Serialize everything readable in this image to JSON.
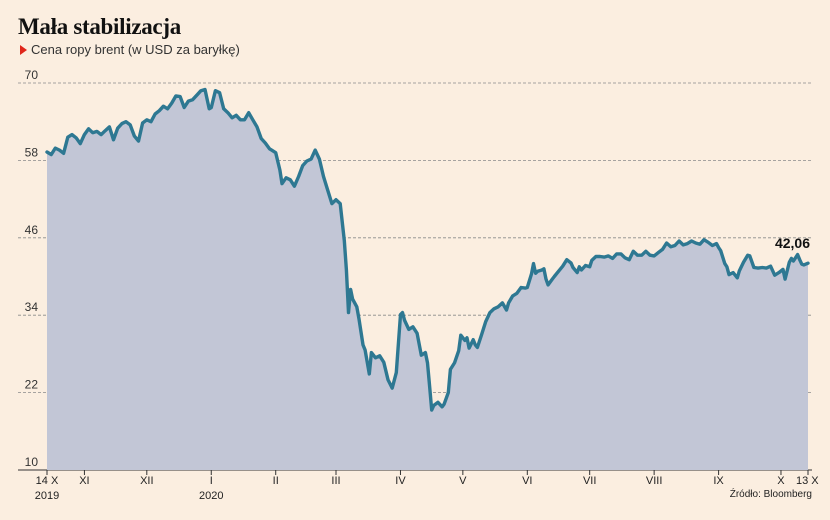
{
  "header": {
    "title": "Mała stabilizacja",
    "subtitle": "Cena ropy brent (w USD za baryłkę)"
  },
  "source": "Źródło: Bloomberg",
  "colors": {
    "background": "#fbeee0",
    "line": "#2e7892",
    "area": "#c2c6d6",
    "marker": "#e0261b",
    "grid": "#8a8a8a"
  },
  "chart_data": {
    "type": "area",
    "ylim": [
      10,
      70
    ],
    "yticks": [
      10,
      22,
      34,
      46,
      58,
      70
    ],
    "grid": true,
    "xlim": [
      0,
      366
    ],
    "xticks": [
      {
        "x": 0,
        "label": "14 X",
        "sub": "2019"
      },
      {
        "x": 18,
        "label": "XI"
      },
      {
        "x": 48,
        "label": "XII"
      },
      {
        "x": 79,
        "label": "I",
        "sub": "2020"
      },
      {
        "x": 110,
        "label": "II"
      },
      {
        "x": 139,
        "label": "III"
      },
      {
        "x": 170,
        "label": "IV"
      },
      {
        "x": 200,
        "label": "V"
      },
      {
        "x": 231,
        "label": "VI"
      },
      {
        "x": 261,
        "label": "VII"
      },
      {
        "x": 292,
        "label": "VIII"
      },
      {
        "x": 323,
        "label": "IX"
      },
      {
        "x": 353,
        "label": "X"
      },
      {
        "x": 366,
        "label": "13 X"
      }
    ],
    "annotation": {
      "text": "42,06",
      "x": 366,
      "y": 42.06
    },
    "series": [
      {
        "points": [
          [
            0,
            59.3
          ],
          [
            2,
            58.9
          ],
          [
            4,
            59.9
          ],
          [
            6,
            59.6
          ],
          [
            8,
            59.1
          ],
          [
            10,
            61.6
          ],
          [
            12,
            62.0
          ],
          [
            14,
            61.5
          ],
          [
            16,
            60.6
          ],
          [
            18,
            62.0
          ],
          [
            20,
            62.9
          ],
          [
            22,
            62.3
          ],
          [
            24,
            62.5
          ],
          [
            26,
            62.0
          ],
          [
            28,
            62.6
          ],
          [
            30,
            63.2
          ],
          [
            32,
            61.2
          ],
          [
            34,
            63.0
          ],
          [
            36,
            63.7
          ],
          [
            38,
            64.0
          ],
          [
            40,
            63.5
          ],
          [
            42,
            61.8
          ],
          [
            44,
            61.0
          ],
          [
            46,
            63.8
          ],
          [
            48,
            64.3
          ],
          [
            50,
            64.0
          ],
          [
            52,
            65.2
          ],
          [
            54,
            65.7
          ],
          [
            56,
            66.4
          ],
          [
            58,
            66.0
          ],
          [
            60,
            66.9
          ],
          [
            62,
            68.0
          ],
          [
            64,
            67.9
          ],
          [
            66,
            66.2
          ],
          [
            68,
            67.2
          ],
          [
            70,
            67.4
          ],
          [
            72,
            68.1
          ],
          [
            74,
            68.8
          ],
          [
            76,
            69.0
          ],
          [
            78,
            66.0
          ],
          [
            79,
            66.2
          ],
          [
            81,
            68.8
          ],
          [
            83,
            68.5
          ],
          [
            85,
            66.0
          ],
          [
            87,
            65.4
          ],
          [
            89,
            64.6
          ],
          [
            91,
            65.0
          ],
          [
            93,
            64.3
          ],
          [
            95,
            64.3
          ],
          [
            97,
            65.4
          ],
          [
            99,
            64.3
          ],
          [
            101,
            63.2
          ],
          [
            103,
            61.4
          ],
          [
            105,
            60.7
          ],
          [
            107,
            59.8
          ],
          [
            108,
            59.6
          ],
          [
            110,
            59.2
          ],
          [
            112,
            56.5
          ],
          [
            113,
            54.4
          ],
          [
            115,
            55.3
          ],
          [
            117,
            55.0
          ],
          [
            119,
            54.0
          ],
          [
            121,
            55.5
          ],
          [
            123,
            57.2
          ],
          [
            125,
            57.9
          ],
          [
            127,
            58.2
          ],
          [
            129,
            59.6
          ],
          [
            131,
            58.2
          ],
          [
            133,
            55.5
          ],
          [
            135,
            53.4
          ],
          [
            137,
            51.3
          ],
          [
            139,
            51.9
          ],
          [
            141,
            51.3
          ],
          [
            143,
            45.6
          ],
          [
            144,
            41.0
          ],
          [
            145,
            34.4
          ],
          [
            146,
            38.0
          ],
          [
            147,
            36.5
          ],
          [
            149,
            35.3
          ],
          [
            150,
            33.5
          ],
          [
            152,
            29.4
          ],
          [
            153,
            28.6
          ],
          [
            155,
            24.9
          ],
          [
            156,
            28.2
          ],
          [
            158,
            27.4
          ],
          [
            160,
            27.7
          ],
          [
            162,
            26.7
          ],
          [
            164,
            24.0
          ],
          [
            166,
            22.7
          ],
          [
            168,
            25.1
          ],
          [
            170,
            34.1
          ],
          [
            171,
            34.4
          ],
          [
            172,
            33.2
          ],
          [
            174,
            31.8
          ],
          [
            176,
            32.2
          ],
          [
            178,
            31.2
          ],
          [
            180,
            27.8
          ],
          [
            182,
            28.2
          ],
          [
            183,
            26.6
          ],
          [
            184,
            23.0
          ],
          [
            185,
            19.3
          ],
          [
            186,
            20.0
          ],
          [
            188,
            20.5
          ],
          [
            190,
            19.8
          ],
          [
            191,
            20.2
          ],
          [
            193,
            22.0
          ],
          [
            194,
            25.6
          ],
          [
            196,
            26.6
          ],
          [
            198,
            28.5
          ],
          [
            199,
            30.9
          ],
          [
            201,
            30.1
          ],
          [
            202,
            30.5
          ],
          [
            203,
            28.9
          ],
          [
            205,
            30.2
          ],
          [
            206,
            29.4
          ],
          [
            207,
            29.0
          ],
          [
            209,
            31.0
          ],
          [
            211,
            33.0
          ],
          [
            213,
            34.4
          ],
          [
            215,
            35.0
          ],
          [
            217,
            35.3
          ],
          [
            219,
            35.9
          ],
          [
            221,
            34.8
          ],
          [
            222,
            35.9
          ],
          [
            224,
            37.0
          ],
          [
            226,
            37.4
          ],
          [
            228,
            38.3
          ],
          [
            230,
            38.2
          ],
          [
            231,
            38.3
          ],
          [
            233,
            40.4
          ],
          [
            234,
            42.0
          ],
          [
            235,
            40.5
          ],
          [
            236,
            40.8
          ],
          [
            238,
            41.0
          ],
          [
            239,
            41.2
          ],
          [
            240,
            39.6
          ],
          [
            241,
            38.7
          ],
          [
            243,
            39.6
          ],
          [
            244,
            40.0
          ],
          [
            246,
            40.8
          ],
          [
            248,
            41.6
          ],
          [
            250,
            42.6
          ],
          [
            252,
            42.1
          ],
          [
            253,
            41.4
          ],
          [
            255,
            40.6
          ],
          [
            256,
            41.5
          ],
          [
            257,
            41.0
          ],
          [
            259,
            41.7
          ],
          [
            261,
            41.5
          ],
          [
            262,
            42.5
          ],
          [
            264,
            43.1
          ],
          [
            266,
            43.1
          ],
          [
            268,
            43.0
          ],
          [
            270,
            43.2
          ],
          [
            272,
            42.8
          ],
          [
            274,
            43.5
          ],
          [
            276,
            43.5
          ],
          [
            278,
            42.9
          ],
          [
            280,
            42.6
          ],
          [
            282,
            43.9
          ],
          [
            284,
            43.3
          ],
          [
            286,
            43.3
          ],
          [
            288,
            43.9
          ],
          [
            290,
            43.3
          ],
          [
            292,
            43.2
          ],
          [
            294,
            43.7
          ],
          [
            296,
            44.2
          ],
          [
            298,
            45.2
          ],
          [
            300,
            44.6
          ],
          [
            302,
            44.8
          ],
          [
            304,
            45.5
          ],
          [
            306,
            44.9
          ],
          [
            308,
            45.1
          ],
          [
            310,
            45.5
          ],
          [
            312,
            45.2
          ],
          [
            314,
            45.0
          ],
          [
            316,
            45.7
          ],
          [
            318,
            45.3
          ],
          [
            320,
            44.8
          ],
          [
            322,
            45.1
          ],
          [
            323,
            44.5
          ],
          [
            324,
            44.0
          ],
          [
            326,
            42.0
          ],
          [
            327,
            41.5
          ],
          [
            328,
            40.3
          ],
          [
            330,
            40.6
          ],
          [
            332,
            39.8
          ],
          [
            333,
            40.9
          ],
          [
            335,
            42.2
          ],
          [
            337,
            43.3
          ],
          [
            338,
            43.2
          ],
          [
            340,
            41.4
          ],
          [
            342,
            41.3
          ],
          [
            344,
            41.4
          ],
          [
            346,
            41.3
          ],
          [
            348,
            41.6
          ],
          [
            350,
            40.2
          ],
          [
            352,
            40.6
          ],
          [
            354,
            41.1
          ],
          [
            355,
            39.6
          ],
          [
            357,
            42.2
          ],
          [
            358,
            42.8
          ],
          [
            359,
            42.4
          ],
          [
            360,
            42.9
          ],
          [
            361,
            43.4
          ],
          [
            362,
            42.6
          ],
          [
            363,
            41.9
          ],
          [
            364,
            41.8
          ],
          [
            366,
            42.06
          ]
        ]
      }
    ]
  }
}
